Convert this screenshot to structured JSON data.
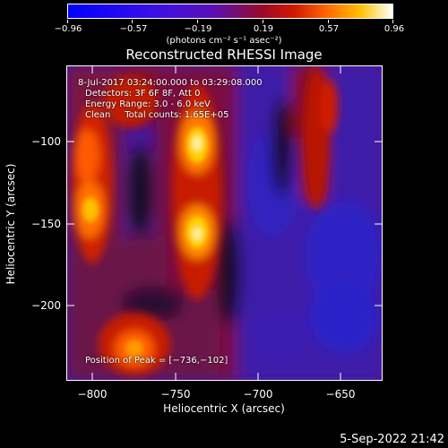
{
  "colorbar": {
    "ticks": [
      "−0.96",
      "−0.57",
      "−0.19",
      "0.19",
      "0.57",
      "0.96"
    ],
    "units": "(photons cm⁻² s⁻¹ asec⁻²)"
  },
  "title": "Reconstructed RHESSI Image",
  "annotations": {
    "time": "8-Jul-2017 03:24:00.000 to 03:29:08.000",
    "detectors": "Detectors: 3F 6F 8F, Att 0",
    "energy": "Energy Range: 3.0 - 6.0 keV",
    "clean": "Clean     Total counts: 1.65E+05",
    "peak": "Position of Peak = [−736,−102]"
  },
  "axes": {
    "xlabel": "Heliocentric X (arcsec)",
    "ylabel": "Heliocentric Y (arcsec)",
    "xticks": [
      "−800",
      "−750",
      "−700",
      "−650"
    ],
    "yticks": [
      "−100",
      "−150",
      "−200"
    ]
  },
  "timestamp": "5-Sep-2022 21:42",
  "image": {
    "x_range": [
      -815,
      -625
    ],
    "y_range": [
      -248,
      -62
    ],
    "peak": [
      -736,
      -102
    ]
  }
}
